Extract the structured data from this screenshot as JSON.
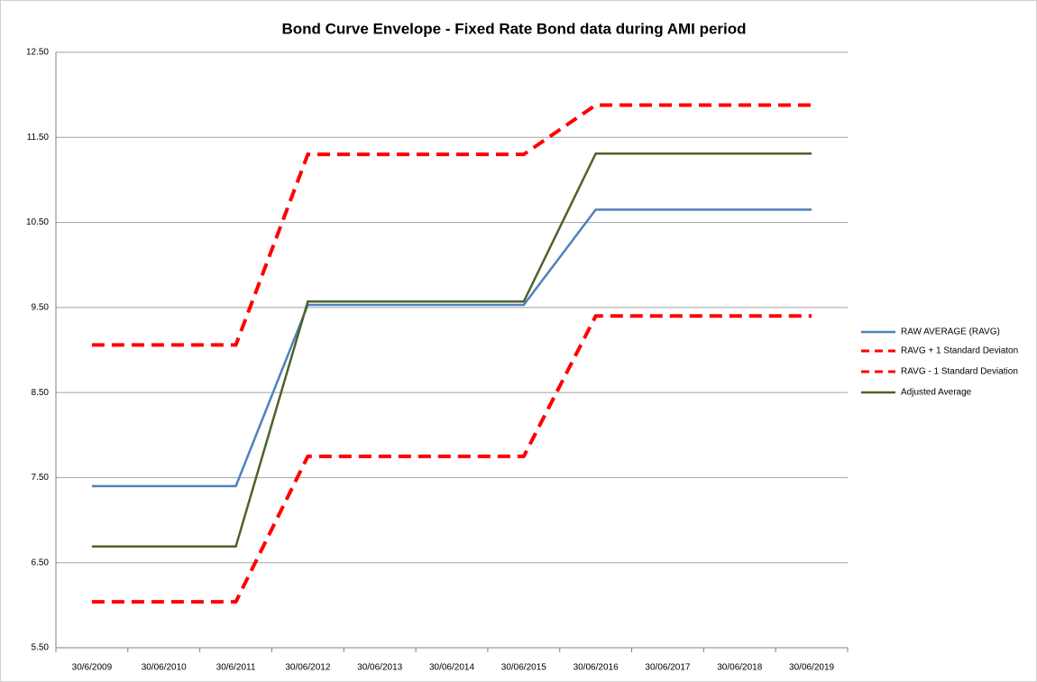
{
  "chart_data": {
    "type": "line",
    "title": "Bond Curve Envelope - Fixed Rate Bond data during AMI period",
    "categories": [
      "30/6/2009",
      "30/06/2010",
      "30/6/2011",
      "30/06/2012",
      "30/06/2013",
      "30/06/2014",
      "30/06/2015",
      "30/06/2016",
      "30/06/2017",
      "30/06/2018",
      "30/06/2019"
    ],
    "series": [
      {
        "name": "RAW AVERAGE (RAVG)",
        "color": "#4f81bd",
        "dashed": false,
        "values": [
          7.4,
          7.4,
          7.4,
          9.53,
          9.53,
          9.53,
          9.53,
          10.65,
          10.65,
          10.65,
          10.65
        ]
      },
      {
        "name": "RAVG + 1 Standard Deviaton",
        "color": "#ff0000",
        "dashed": true,
        "values": [
          9.06,
          9.06,
          9.06,
          11.3,
          11.3,
          11.3,
          11.3,
          11.88,
          11.88,
          11.88,
          11.88
        ]
      },
      {
        "name": "RAVG - 1 Standard Deviation",
        "color": "#ff0000",
        "dashed": true,
        "values": [
          6.04,
          6.04,
          6.04,
          7.75,
          7.75,
          7.75,
          7.75,
          9.4,
          9.4,
          9.4,
          9.4
        ]
      },
      {
        "name": "Adjusted Average",
        "color": "#4f6228",
        "dashed": false,
        "values": [
          6.69,
          6.69,
          6.69,
          9.57,
          9.57,
          9.57,
          9.57,
          11.31,
          11.31,
          11.31,
          11.31
        ]
      }
    ],
    "ylim": [
      5.5,
      12.5
    ],
    "yticks": [
      {
        "value": 5.5,
        "label": "5.50"
      },
      {
        "value": 6.5,
        "label": "6.50"
      },
      {
        "value": 7.5,
        "label": "7.50"
      },
      {
        "value": 8.5,
        "label": "8.50"
      },
      {
        "value": 9.5,
        "label": "9.50"
      },
      {
        "value": 10.5,
        "label": "10.50"
      },
      {
        "value": 11.5,
        "label": "11.50"
      },
      {
        "value": 12.5,
        "label": "12.50"
      }
    ],
    "grid": true,
    "legend": "right"
  }
}
